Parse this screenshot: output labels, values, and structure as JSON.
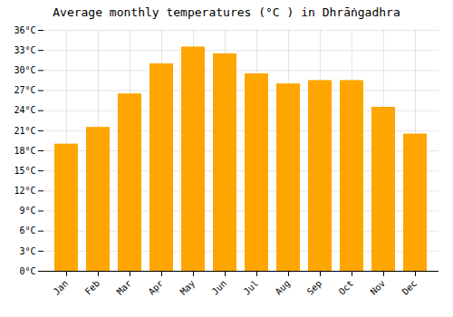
{
  "chart_data": {
    "type": "bar",
    "title": "Average monthly temperatures (°C ) in Dhrā̇ngadhra",
    "categories": [
      "Jan",
      "Feb",
      "Mar",
      "Apr",
      "May",
      "Jun",
      "Jul",
      "Aug",
      "Sep",
      "Oct",
      "Nov",
      "Dec"
    ],
    "values": [
      19,
      21.5,
      26.5,
      31,
      33.5,
      32.5,
      29.5,
      28,
      28.5,
      28.5,
      24.5,
      20.5
    ],
    "color": "#FFA500",
    "ylim": [
      0,
      36
    ],
    "yticks": [
      {
        "value": 0,
        "label": "0°C"
      },
      {
        "value": 3,
        "label": "3°C"
      },
      {
        "value": 6,
        "label": "6°C"
      },
      {
        "value": 9,
        "label": "9°C"
      },
      {
        "value": 12,
        "label": "12°C"
      },
      {
        "value": 15,
        "label": "15°C"
      },
      {
        "value": 18,
        "label": "18°C"
      },
      {
        "value": 21,
        "label": "21°C"
      },
      {
        "value": 24,
        "label": "24°C"
      },
      {
        "value": 27,
        "label": "27°C"
      },
      {
        "value": 30,
        "label": "30°C"
      },
      {
        "value": 33,
        "label": "33°C"
      },
      {
        "value": 36,
        "label": "36°C"
      }
    ],
    "grid": true
  }
}
